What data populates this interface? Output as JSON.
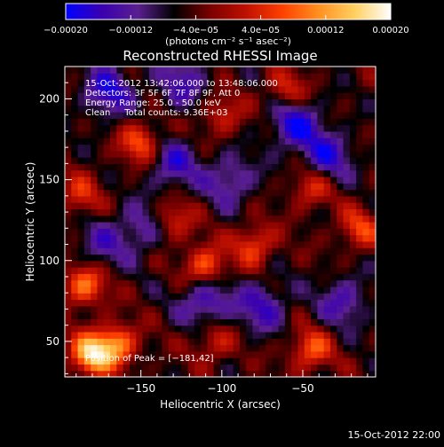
{
  "chart_data": {
    "type": "heatmap",
    "title": "Reconstructed RHESSI Image",
    "xlabel": "Heliocentric X (arcsec)",
    "ylabel": "Heliocentric Y (arcsec)",
    "xlim": [
      -197,
      -5
    ],
    "ylim": [
      28,
      220
    ],
    "x_ticks": [
      -150,
      -100,
      -50
    ],
    "x_tick_labels": [
      "−150",
      "−100",
      "−50"
    ],
    "y_ticks": [
      50,
      100,
      150,
      200
    ],
    "y_tick_labels": [
      "50",
      "100",
      "150",
      "200"
    ],
    "info_lines": [
      "15-Oct-2012 13:42:06.000 to 13:48:06.000",
      "Detectors: 3F 5F 6F 7F 8F 9F, Att 0",
      "Energy Range: 25.0 - 50.0 keV",
      "Clean     Total counts: 9.36E+03"
    ],
    "peak_label": "Position of Peak = [−181,42]",
    "peak": [
      -181,
      42
    ],
    "colorbar": {
      "range": [
        -0.0002,
        0.0002
      ],
      "ticks": [
        -0.0002,
        -0.00012,
        -4e-05,
        4e-05,
        0.00012,
        0.0002
      ],
      "tick_labels": [
        "−0.00020",
        "−0.00012",
        "−4.0e−05",
        "4.0e−05",
        "0.00012",
        "0.00020"
      ],
      "unit_label": "(photons cm⁻² s⁻¹ asec⁻²)",
      "colors": [
        "#0000ff",
        "#3a00b0",
        "#5a1f8f",
        "#000000",
        "#7a0000",
        "#c01000",
        "#ff4000",
        "#ff9020",
        "#ffd060",
        "#ffffff"
      ]
    },
    "hot_spots": [
      {
        "x": -181,
        "y": 42,
        "v": 0.0002
      },
      {
        "x": -165,
        "y": 48,
        "v": 0.00015
      },
      {
        "x": -185,
        "y": 85,
        "v": 0.00014
      },
      {
        "x": -110,
        "y": 97,
        "v": 0.00013
      },
      {
        "x": -80,
        "y": 110,
        "v": 0.00011
      },
      {
        "x": -150,
        "y": 173,
        "v": 0.00012
      },
      {
        "x": -45,
        "y": 45,
        "v": 0.00012
      },
      {
        "x": -45,
        "y": 145,
        "v": 9e-05
      },
      {
        "x": -100,
        "y": 190,
        "v": 8e-05
      },
      {
        "x": -15,
        "y": 120,
        "v": 0.0001
      },
      {
        "x": -60,
        "y": 205,
        "v": 9e-05
      },
      {
        "x": -130,
        "y": 125,
        "v": 9e-05
      },
      {
        "x": -105,
        "y": 50,
        "v": 8e-05
      },
      {
        "x": -188,
        "y": 140,
        "v": 9e-05
      }
    ],
    "cold_spots": [
      {
        "x": -170,
        "y": 205,
        "v": -0.00012
      },
      {
        "x": -55,
        "y": 185,
        "v": -0.00013
      },
      {
        "x": -130,
        "y": 160,
        "v": -0.0001
      },
      {
        "x": -95,
        "y": 150,
        "v": -9e-05
      },
      {
        "x": -35,
        "y": 165,
        "v": -0.00011
      },
      {
        "x": -110,
        "y": 75,
        "v": -0.00011
      },
      {
        "x": -75,
        "y": 72,
        "v": -0.0001
      },
      {
        "x": -150,
        "y": 120,
        "v": -8e-05
      },
      {
        "x": -25,
        "y": 75,
        "v": -9e-05
      },
      {
        "x": -125,
        "y": 210,
        "v": -9e-05
      },
      {
        "x": -175,
        "y": 110,
        "v": -7e-05
      }
    ],
    "grid": false
  },
  "footer_timestamp": "15-Oct-2012 22:00"
}
